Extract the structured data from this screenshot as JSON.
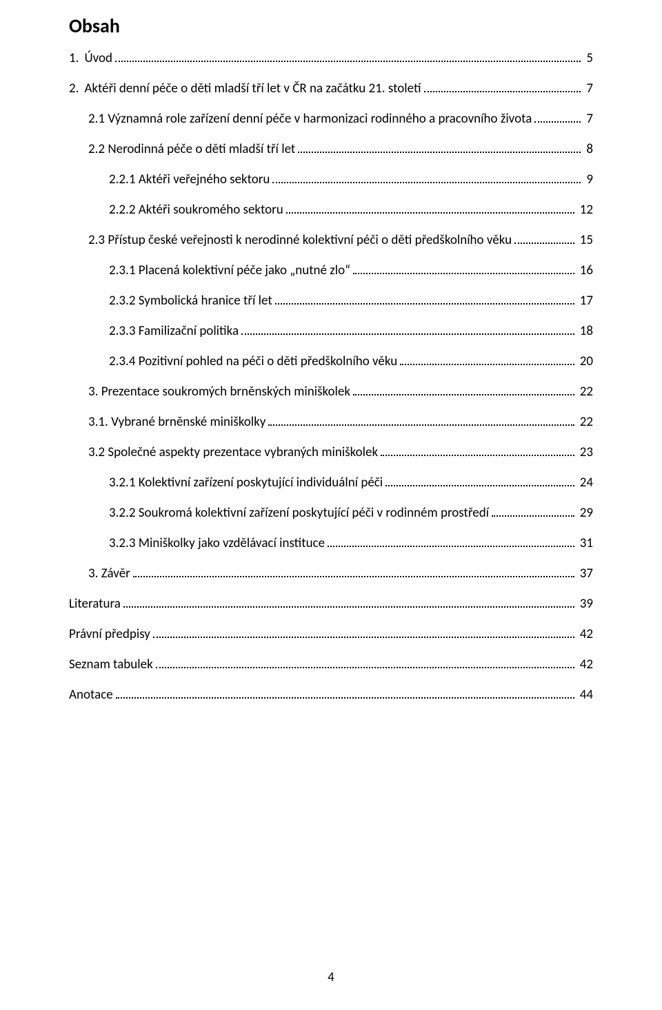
{
  "title": "Obsah",
  "page_number": "4",
  "font_family": "Calibri",
  "text_color": "#000000",
  "background_color": "#ffffff",
  "title_fontsize": 28,
  "body_fontsize": 19,
  "dot_leader_color": "#000000",
  "toc": [
    {
      "indent": "indent-0",
      "num": "1.",
      "text": "Úvod",
      "page": "5"
    },
    {
      "indent": "indent-0",
      "num": "2.",
      "text": "Aktéři denní péče o děti mladší tří let v ČR na začátku 21. století",
      "page": "7"
    },
    {
      "indent": "indent-1",
      "num": "",
      "text": "2.1 Významná role zařízení denní péče v harmonizaci rodinného a pracovního života",
      "page": "7"
    },
    {
      "indent": "indent-1",
      "num": "",
      "text": "2.2 Nerodinná péče o děti mladší tří let",
      "page": "8"
    },
    {
      "indent": "indent-2",
      "num": "",
      "text": "2.2.1 Aktéři veřejného sektoru",
      "page": "9"
    },
    {
      "indent": "indent-2",
      "num": "",
      "text": "2.2.2 Aktéři soukromého sektoru",
      "page": "12"
    },
    {
      "indent": "indent-1",
      "num": "",
      "text": "2.3 Přístup české veřejnosti k nerodinné kolektivní péči o děti předškolního věku",
      "page": "15"
    },
    {
      "indent": "indent-2",
      "num": "",
      "text": "2.3.1 Placená kolektivní péče jako „nutné zlo“",
      "page": "16"
    },
    {
      "indent": "indent-2",
      "num": "",
      "text": "2.3.2 Symbolická hranice tří let",
      "page": "17"
    },
    {
      "indent": "indent-2",
      "num": "",
      "text": "2.3.3 Familizační politika",
      "page": "18"
    },
    {
      "indent": "indent-2",
      "num": "",
      "text": "2.3.4 Pozitivní pohled na péči o děti předškolního věku",
      "page": "20"
    },
    {
      "indent": "indent-0b",
      "num": "",
      "text": "3. Prezentace soukromých brněnských miniškolek",
      "page": "22"
    },
    {
      "indent": "indent-1",
      "num": "",
      "text": "3.1. Vybrané brněnské miniškolky",
      "page": "22"
    },
    {
      "indent": "indent-1",
      "num": "",
      "text": "3.2 Společné aspekty prezentace vybraných miniškolek",
      "page": "23"
    },
    {
      "indent": "indent-2",
      "num": "",
      "text": "3.2.1 Kolektivní zařízení poskytující individuální péči",
      "page": "24"
    },
    {
      "indent": "indent-2",
      "num": "",
      "text": "3.2.2 Soukromá kolektivní zařízení poskytující péči v rodinném prostředí",
      "page": "29"
    },
    {
      "indent": "indent-2",
      "num": "",
      "text": "3.2.3 Miniškolky jako vzdělávací instituce",
      "page": "31"
    },
    {
      "indent": "indent-0b",
      "num": "",
      "text": "3. Závěr",
      "page": "37"
    },
    {
      "indent": "indent-0",
      "num": "",
      "text": "Literatura",
      "page": "39"
    },
    {
      "indent": "indent-0",
      "num": "",
      "text": "Právní předpisy",
      "page": "42"
    },
    {
      "indent": "indent-0",
      "num": "",
      "text": "Seznam tabulek",
      "page": "42"
    },
    {
      "indent": "indent-0",
      "num": "",
      "text": "Anotace",
      "page": "44"
    }
  ]
}
